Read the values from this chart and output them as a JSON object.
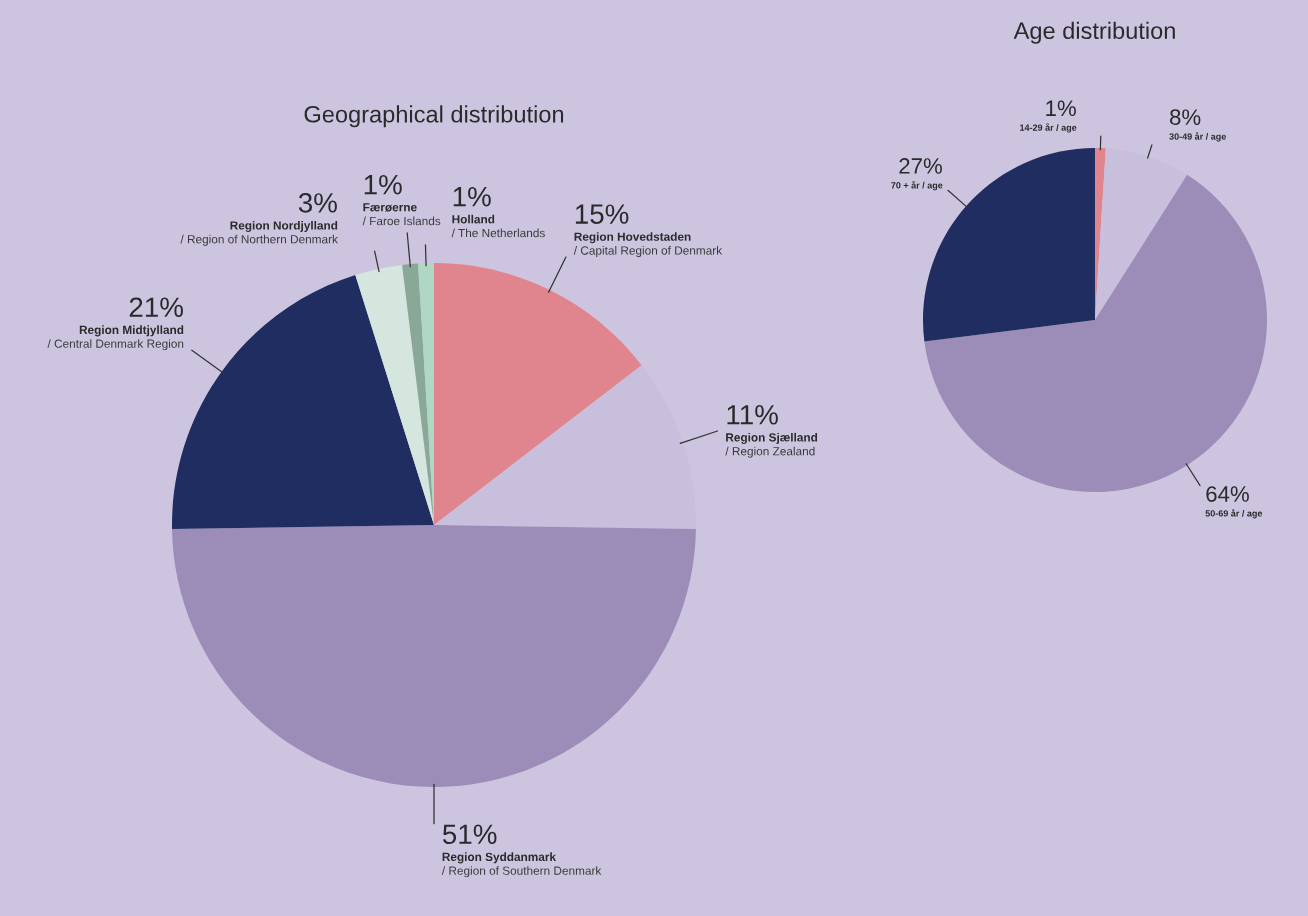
{
  "chart_data": [
    {
      "type": "pie",
      "title": "Geographical distribution",
      "categories": [
        "Region Hovedstaden\n/ Capital Region of Denmark",
        "Region Sjælland\n/ Region Zealand",
        "Region Syddanmark\n/ Region of Southern Denmark",
        "Region Midtjylland\n/ Central Denmark Region",
        "Region Nordjylland\n/ Region of Northern Denmark",
        "Færøerne\n/ Faroe Islands",
        "Holland\n/ The Netherlands"
      ],
      "values": [
        15,
        11,
        51,
        21,
        3,
        1,
        1
      ],
      "value_labels": [
        "15%",
        "11%",
        "51%",
        "21%",
        "3%",
        "1%",
        "1%"
      ],
      "colors": [
        "#e0858e",
        "#c7bfdc",
        "#9c8cb8",
        "#1f2d60",
        "#d5e6de",
        "#8aa898",
        "#b0d6c4"
      ]
    },
    {
      "type": "pie",
      "title": "Age distribution",
      "categories": [
        "14-29 år / age",
        "30-49 år / age",
        "50-69 år / age",
        "70 + år / age"
      ],
      "values": [
        1,
        8,
        64,
        27
      ],
      "value_labels": [
        "1%",
        "8%",
        "64%",
        "27%"
      ],
      "colors": [
        "#e0858e",
        "#c7bfdc",
        "#9c8cb8",
        "#1f2d60"
      ]
    }
  ]
}
